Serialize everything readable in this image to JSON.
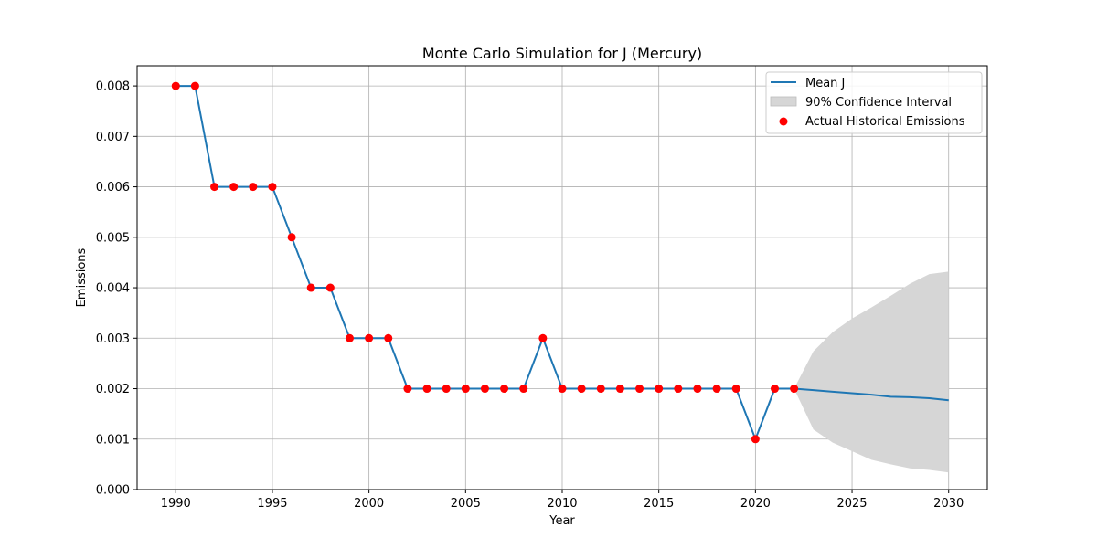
{
  "chart_data": {
    "type": "line",
    "title": "Monte Carlo Simulation for J (Mercury)",
    "xlabel": "Year",
    "ylabel": "Emissions",
    "xlim": [
      1988,
      2032
    ],
    "ylim": [
      0,
      0.0084
    ],
    "xticks": [
      1990,
      1995,
      2000,
      2005,
      2010,
      2015,
      2020,
      2025,
      2030
    ],
    "xtick_labels": [
      "1990",
      "1995",
      "2000",
      "2005",
      "2010",
      "2015",
      "2020",
      "2025",
      "2030"
    ],
    "yticks": [
      0,
      0.001,
      0.002,
      0.003,
      0.004,
      0.005,
      0.006,
      0.007,
      0.008
    ],
    "ytick_labels": [
      "0.000",
      "0.001",
      "0.002",
      "0.003",
      "0.004",
      "0.005",
      "0.006",
      "0.007",
      "0.008"
    ],
    "grid": true,
    "legend_position": "top-right",
    "series": [
      {
        "name": "Mean J",
        "kind": "line",
        "color": "#1f77b4",
        "x": [
          1990,
          1991,
          1992,
          1993,
          1994,
          1995,
          1996,
          1997,
          1998,
          1999,
          2000,
          2001,
          2002,
          2003,
          2004,
          2005,
          2006,
          2007,
          2008,
          2009,
          2010,
          2011,
          2012,
          2013,
          2014,
          2015,
          2016,
          2017,
          2018,
          2019,
          2020,
          2021,
          2022,
          2023,
          2024,
          2025,
          2026,
          2027,
          2028,
          2029,
          2030
        ],
        "y": [
          0.008,
          0.008,
          0.006,
          0.006,
          0.006,
          0.006,
          0.005,
          0.004,
          0.004,
          0.003,
          0.003,
          0.003,
          0.002,
          0.002,
          0.002,
          0.002,
          0.002,
          0.002,
          0.002,
          0.003,
          0.002,
          0.002,
          0.002,
          0.002,
          0.002,
          0.002,
          0.002,
          0.002,
          0.002,
          0.002,
          0.001,
          0.002,
          0.002,
          0.00197,
          0.00194,
          0.00191,
          0.00188,
          0.00184,
          0.00183,
          0.00181,
          0.00177
        ]
      },
      {
        "name": "90% Confidence Interval",
        "kind": "band",
        "color": "#d6d6d6",
        "x": [
          2022,
          2023,
          2024,
          2025,
          2026,
          2027,
          2028,
          2029,
          2030
        ],
        "lower": [
          0.002,
          0.00119,
          0.00093,
          0.00076,
          0.00059,
          0.0005,
          0.00042,
          0.00039,
          0.00034
        ],
        "upper": [
          0.002,
          0.00274,
          0.00312,
          0.00339,
          0.00361,
          0.00384,
          0.00408,
          0.00427,
          0.00432
        ]
      },
      {
        "name": "Actual Historical Emissions",
        "kind": "scatter",
        "color": "#ff0000",
        "x": [
          1990,
          1991,
          1992,
          1993,
          1994,
          1995,
          1996,
          1997,
          1998,
          1999,
          2000,
          2001,
          2002,
          2003,
          2004,
          2005,
          2006,
          2007,
          2008,
          2009,
          2010,
          2011,
          2012,
          2013,
          2014,
          2015,
          2016,
          2017,
          2018,
          2019,
          2020,
          2021,
          2022
        ],
        "y": [
          0.008,
          0.008,
          0.006,
          0.006,
          0.006,
          0.006,
          0.005,
          0.004,
          0.004,
          0.003,
          0.003,
          0.003,
          0.002,
          0.002,
          0.002,
          0.002,
          0.002,
          0.002,
          0.002,
          0.003,
          0.002,
          0.002,
          0.002,
          0.002,
          0.002,
          0.002,
          0.002,
          0.002,
          0.002,
          0.002,
          0.001,
          0.002,
          0.002
        ]
      }
    ],
    "legend": [
      {
        "label": "Mean J",
        "symbol": "line",
        "color": "#1f77b4"
      },
      {
        "label": "90% Confidence Interval",
        "symbol": "patch",
        "color": "#d6d6d6"
      },
      {
        "label": "Actual Historical Emissions",
        "symbol": "dot",
        "color": "#ff0000"
      }
    ]
  }
}
